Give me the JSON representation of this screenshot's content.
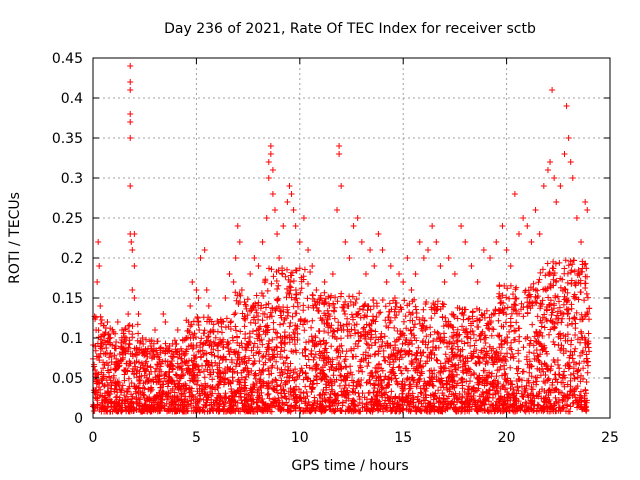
{
  "chart_data": {
    "type": "scatter",
    "title": "Day 236 of 2021, Rate Of TEC Index for receiver sctb",
    "xlabel": "GPS time / hours",
    "ylabel": "ROTI / TECUs",
    "xlim": [
      0,
      25
    ],
    "ylim": [
      0,
      0.45
    ],
    "x_ticks": [
      0,
      5,
      10,
      15,
      20,
      25
    ],
    "y_ticks": [
      0,
      0.05,
      0.1,
      0.15,
      0.2,
      0.25,
      0.3,
      0.35,
      0.4,
      0.45
    ],
    "grid": true,
    "marker": "+",
    "color": "#ff0000",
    "series": [
      {
        "points": [
          [
            0.1,
            0.06
          ],
          [
            0.15,
            0.11
          ],
          [
            0.2,
            0.17
          ],
          [
            0.25,
            0.22
          ],
          [
            0.3,
            0.19
          ],
          [
            0.35,
            0.14
          ],
          [
            0.4,
            0.09
          ],
          [
            0.5,
            0.05
          ],
          [
            0.6,
            0.08
          ],
          [
            0.7,
            0.12
          ],
          [
            0.8,
            0.1
          ],
          [
            0.9,
            0.07
          ],
          [
            1.0,
            0.05
          ],
          [
            1.1,
            0.09
          ],
          [
            1.2,
            0.12
          ],
          [
            1.3,
            0.08
          ],
          [
            1.4,
            0.11
          ],
          [
            1.5,
            0.06
          ],
          [
            1.6,
            0.1
          ],
          [
            1.7,
            0.13
          ],
          [
            1.8,
            0.44
          ],
          [
            1.8,
            0.42
          ],
          [
            1.8,
            0.41
          ],
          [
            1.8,
            0.38
          ],
          [
            1.8,
            0.37
          ],
          [
            1.8,
            0.35
          ],
          [
            1.8,
            0.29
          ],
          [
            1.8,
            0.23
          ],
          [
            1.85,
            0.22
          ],
          [
            1.9,
            0.21
          ],
          [
            1.9,
            0.16
          ],
          [
            2.0,
            0.15
          ],
          [
            2.0,
            0.23
          ],
          [
            2.0,
            0.19
          ],
          [
            2.2,
            0.13
          ],
          [
            2.4,
            0.1
          ],
          [
            2.6,
            0.08
          ],
          [
            2.8,
            0.09
          ],
          [
            3.0,
            0.11
          ],
          [
            3.2,
            0.07
          ],
          [
            3.4,
            0.13
          ],
          [
            3.5,
            0.12
          ],
          [
            3.7,
            0.09
          ],
          [
            3.9,
            0.08
          ],
          [
            4.1,
            0.11
          ],
          [
            4.3,
            0.06
          ],
          [
            4.5,
            0.1
          ],
          [
            4.7,
            0.14
          ],
          [
            4.8,
            0.17
          ],
          [
            5.0,
            0.16
          ],
          [
            5.1,
            0.15
          ],
          [
            5.2,
            0.2
          ],
          [
            5.4,
            0.21
          ],
          [
            5.5,
            0.16
          ],
          [
            5.6,
            0.14
          ],
          [
            5.8,
            0.11
          ],
          [
            6.0,
            0.09
          ],
          [
            6.2,
            0.12
          ],
          [
            6.4,
            0.15
          ],
          [
            6.6,
            0.18
          ],
          [
            6.8,
            0.17
          ],
          [
            6.9,
            0.2
          ],
          [
            7.0,
            0.24
          ],
          [
            7.1,
            0.22
          ],
          [
            7.2,
            0.16
          ],
          [
            7.4,
            0.14
          ],
          [
            7.6,
            0.18
          ],
          [
            7.8,
            0.2
          ],
          [
            8.0,
            0.19
          ],
          [
            8.2,
            0.22
          ],
          [
            8.4,
            0.25
          ],
          [
            8.5,
            0.3
          ],
          [
            8.5,
            0.32
          ],
          [
            8.6,
            0.34
          ],
          [
            8.6,
            0.33
          ],
          [
            8.7,
            0.31
          ],
          [
            8.7,
            0.28
          ],
          [
            8.8,
            0.26
          ],
          [
            8.9,
            0.23
          ],
          [
            9.0,
            0.2
          ],
          [
            9.2,
            0.24
          ],
          [
            9.4,
            0.27
          ],
          [
            9.5,
            0.29
          ],
          [
            9.6,
            0.28
          ],
          [
            9.7,
            0.26
          ],
          [
            9.8,
            0.24
          ],
          [
            10.0,
            0.22
          ],
          [
            10.2,
            0.25
          ],
          [
            10.4,
            0.21
          ],
          [
            10.6,
            0.19
          ],
          [
            10.8,
            0.16
          ],
          [
            11.0,
            0.15
          ],
          [
            11.2,
            0.17
          ],
          [
            11.4,
            0.13
          ],
          [
            11.6,
            0.18
          ],
          [
            11.8,
            0.26
          ],
          [
            11.9,
            0.34
          ],
          [
            11.9,
            0.33
          ],
          [
            12.0,
            0.29
          ],
          [
            12.2,
            0.22
          ],
          [
            12.4,
            0.2
          ],
          [
            12.6,
            0.24
          ],
          [
            12.8,
            0.25
          ],
          [
            13.0,
            0.22
          ],
          [
            13.2,
            0.18
          ],
          [
            13.4,
            0.21
          ],
          [
            13.6,
            0.19
          ],
          [
            13.8,
            0.23
          ],
          [
            14.0,
            0.21
          ],
          [
            14.2,
            0.17
          ],
          [
            14.4,
            0.19
          ],
          [
            14.6,
            0.15
          ],
          [
            14.8,
            0.18
          ],
          [
            15.0,
            0.17
          ],
          [
            15.2,
            0.2
          ],
          [
            15.4,
            0.16
          ],
          [
            15.6,
            0.18
          ],
          [
            15.8,
            0.22
          ],
          [
            16.0,
            0.2
          ],
          [
            16.2,
            0.21
          ],
          [
            16.4,
            0.24
          ],
          [
            16.6,
            0.22
          ],
          [
            16.8,
            0.19
          ],
          [
            17.0,
            0.17
          ],
          [
            17.2,
            0.2
          ],
          [
            17.5,
            0.18
          ],
          [
            17.8,
            0.24
          ],
          [
            18.0,
            0.22
          ],
          [
            18.3,
            0.19
          ],
          [
            18.6,
            0.17
          ],
          [
            18.9,
            0.21
          ],
          [
            19.2,
            0.2
          ],
          [
            19.5,
            0.22
          ],
          [
            19.8,
            0.24
          ],
          [
            20.0,
            0.21
          ],
          [
            20.2,
            0.19
          ],
          [
            20.4,
            0.28
          ],
          [
            20.6,
            0.23
          ],
          [
            20.8,
            0.25
          ],
          [
            21.0,
            0.24
          ],
          [
            21.2,
            0.22
          ],
          [
            21.4,
            0.26
          ],
          [
            21.6,
            0.23
          ],
          [
            21.8,
            0.29
          ],
          [
            22.0,
            0.31
          ],
          [
            22.1,
            0.32
          ],
          [
            22.2,
            0.41
          ],
          [
            22.3,
            0.3
          ],
          [
            22.4,
            0.27
          ],
          [
            22.6,
            0.29
          ],
          [
            22.8,
            0.33
          ],
          [
            22.9,
            0.39
          ],
          [
            23.0,
            0.35
          ],
          [
            23.1,
            0.32
          ],
          [
            23.2,
            0.3
          ],
          [
            23.4,
            0.25
          ],
          [
            23.6,
            0.22
          ],
          [
            23.8,
            0.27
          ],
          [
            23.9,
            0.26
          ]
        ]
      }
    ]
  }
}
